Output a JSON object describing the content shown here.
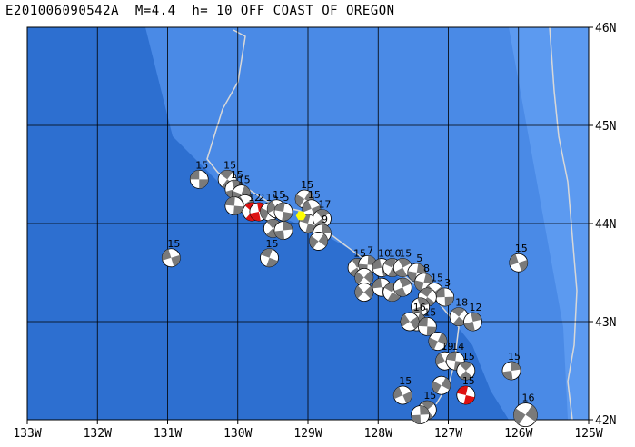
{
  "title": "E201006090542A  M=4.4  h= 10 OFF COAST OF OREGON",
  "extent": {
    "lon_min": -133,
    "lon_max": -125,
    "lat_min": 42,
    "lat_max": 46
  },
  "lon_ticks": [
    {
      "lon": -133,
      "label": "133W"
    },
    {
      "lon": -132,
      "label": "132W"
    },
    {
      "lon": -131,
      "label": "131W"
    },
    {
      "lon": -130,
      "label": "130W"
    },
    {
      "lon": -129,
      "label": "129W"
    },
    {
      "lon": -128,
      "label": "128W"
    },
    {
      "lon": -127,
      "label": "127W"
    },
    {
      "lon": -126,
      "label": "126W"
    },
    {
      "lon": -125,
      "label": "125W"
    }
  ],
  "lat_ticks": [
    {
      "lat": 46,
      "label": "46N"
    },
    {
      "lat": 45,
      "label": "45N"
    },
    {
      "lat": 44,
      "label": "44N"
    },
    {
      "lat": 43,
      "label": "43N"
    },
    {
      "lat": 42,
      "label": "42N"
    }
  ],
  "colors": {
    "deep_ocean": "#2d6fd0",
    "shelf": "#4a8ae6",
    "coast_shelf": "#5c9af0",
    "grid": "#000000",
    "boundary": "#d8d8d8",
    "highlight_event": "#dd1111",
    "normal_event": "#7a7a7a",
    "epicenter": "#ffff00"
  },
  "epicenter": {
    "lon": -129.1,
    "lat": 44.08
  },
  "events": [
    {
      "lon": -130.55,
      "lat": 44.45,
      "depth": "15",
      "hl": false
    },
    {
      "lon": -130.15,
      "lat": 44.45,
      "depth": "15",
      "hl": false
    },
    {
      "lon": -130.05,
      "lat": 44.35,
      "depth": "15",
      "hl": false
    },
    {
      "lon": -129.95,
      "lat": 44.3,
      "depth": "15",
      "hl": false
    },
    {
      "lon": -129.9,
      "lat": 44.2,
      "depth": "",
      "hl": false
    },
    {
      "lon": -130.05,
      "lat": 44.18,
      "depth": "",
      "hl": false
    },
    {
      "lon": -129.8,
      "lat": 44.12,
      "depth": "12",
      "hl": true
    },
    {
      "lon": -129.7,
      "lat": 44.12,
      "depth": "2",
      "hl": true
    },
    {
      "lon": -129.55,
      "lat": 44.12,
      "depth": "15",
      "hl": false
    },
    {
      "lon": -129.45,
      "lat": 44.15,
      "depth": "15",
      "hl": false
    },
    {
      "lon": -129.35,
      "lat": 44.12,
      "depth": "5",
      "hl": false
    },
    {
      "lon": -129.5,
      "lat": 43.95,
      "depth": "",
      "hl": false
    },
    {
      "lon": -129.35,
      "lat": 43.93,
      "depth": "",
      "hl": false
    },
    {
      "lon": -129.05,
      "lat": 44.25,
      "depth": "15",
      "hl": false
    },
    {
      "lon": -128.95,
      "lat": 44.15,
      "depth": "15",
      "hl": false
    },
    {
      "lon": -129.0,
      "lat": 44.0,
      "depth": "",
      "hl": false
    },
    {
      "lon": -128.8,
      "lat": 44.05,
      "depth": "17",
      "hl": false
    },
    {
      "lon": -128.8,
      "lat": 43.9,
      "depth": "9",
      "hl": false
    },
    {
      "lon": -128.85,
      "lat": 43.82,
      "depth": "",
      "hl": false
    },
    {
      "lon": -130.95,
      "lat": 43.65,
      "depth": "15",
      "hl": false
    },
    {
      "lon": -129.55,
      "lat": 43.65,
      "depth": "15",
      "hl": false
    },
    {
      "lon": -128.3,
      "lat": 43.55,
      "depth": "15",
      "hl": false
    },
    {
      "lon": -128.15,
      "lat": 43.58,
      "depth": "7",
      "hl": false
    },
    {
      "lon": -128.2,
      "lat": 43.45,
      "depth": "",
      "hl": false
    },
    {
      "lon": -127.95,
      "lat": 43.55,
      "depth": "10",
      "hl": false
    },
    {
      "lon": -127.8,
      "lat": 43.55,
      "depth": "10",
      "hl": false
    },
    {
      "lon": -127.65,
      "lat": 43.55,
      "depth": "15",
      "hl": false
    },
    {
      "lon": -127.45,
      "lat": 43.5,
      "depth": "5",
      "hl": false
    },
    {
      "lon": -128.2,
      "lat": 43.3,
      "depth": "",
      "hl": false
    },
    {
      "lon": -127.95,
      "lat": 43.35,
      "depth": "",
      "hl": false
    },
    {
      "lon": -127.8,
      "lat": 43.3,
      "depth": "",
      "hl": false
    },
    {
      "lon": -127.65,
      "lat": 43.35,
      "depth": "",
      "hl": false
    },
    {
      "lon": -127.35,
      "lat": 43.4,
      "depth": "8",
      "hl": false
    },
    {
      "lon": -127.2,
      "lat": 43.3,
      "depth": "15",
      "hl": false
    },
    {
      "lon": -127.05,
      "lat": 43.25,
      "depth": "3",
      "hl": false
    },
    {
      "lon": -127.3,
      "lat": 43.25,
      "depth": "",
      "hl": false
    },
    {
      "lon": -127.4,
      "lat": 43.15,
      "depth": "",
      "hl": false
    },
    {
      "lon": -127.45,
      "lat": 43.0,
      "depth": "16",
      "hl": false
    },
    {
      "lon": -127.55,
      "lat": 43.0,
      "depth": "",
      "hl": false
    },
    {
      "lon": -127.3,
      "lat": 42.95,
      "depth": "15",
      "hl": false
    },
    {
      "lon": -126.85,
      "lat": 43.05,
      "depth": "18",
      "hl": false
    },
    {
      "lon": -126.65,
      "lat": 43.0,
      "depth": "12",
      "hl": false
    },
    {
      "lon": -127.15,
      "lat": 42.8,
      "depth": "",
      "hl": false
    },
    {
      "lon": -127.05,
      "lat": 42.6,
      "depth": "19",
      "hl": false
    },
    {
      "lon": -126.9,
      "lat": 42.6,
      "depth": "14",
      "hl": false
    },
    {
      "lon": -126.75,
      "lat": 42.5,
      "depth": "15",
      "hl": false
    },
    {
      "lon": -126.1,
      "lat": 42.5,
      "depth": "15",
      "hl": false
    },
    {
      "lon": -127.1,
      "lat": 42.35,
      "depth": "",
      "hl": false
    },
    {
      "lon": -127.65,
      "lat": 42.25,
      "depth": "15",
      "hl": false
    },
    {
      "lon": -126.75,
      "lat": 42.25,
      "depth": "15",
      "hl": true
    },
    {
      "lon": -127.3,
      "lat": 42.1,
      "depth": "15",
      "hl": false
    },
    {
      "lon": -127.4,
      "lat": 42.05,
      "depth": "",
      "hl": false
    },
    {
      "lon": -125.9,
      "lat": 42.05,
      "depth": "16",
      "hl": false
    },
    {
      "lon": -126.0,
      "lat": 43.6,
      "depth": "15",
      "hl": false
    }
  ]
}
